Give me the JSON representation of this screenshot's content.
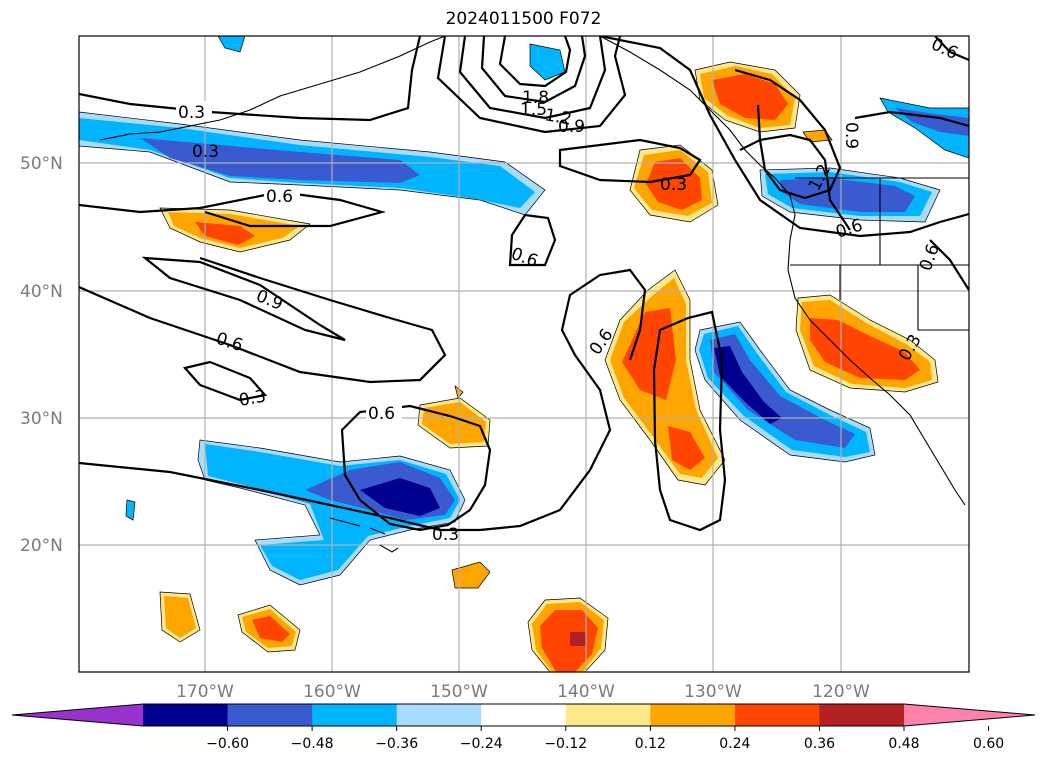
{
  "title": "2024011500 F072",
  "lat_labels": [
    "50°N",
    "40°N",
    "30°N",
    "20°N"
  ],
  "lon_labels": [
    "170°W",
    "160°W",
    "150°W",
    "140°W",
    "130°W",
    "120°W"
  ],
  "colorbar": {
    "ticks": [
      "−0.60",
      "−0.48",
      "−0.36",
      "−0.24",
      "−0.12",
      "0.12",
      "0.24",
      "0.36",
      "0.48",
      "0.60"
    ],
    "colors": [
      "#9932cc",
      "#000090",
      "#3a5bd0",
      "#00b4ff",
      "#a8dcff",
      "#ffffff",
      "#ffe88a",
      "#ffa500",
      "#ff4500",
      "#b22222",
      "#ff82ab"
    ]
  },
  "contour_labels": [
    "0.3",
    "0.3",
    "0.6",
    "0.9",
    "0.6",
    "0.3",
    "0.6",
    "0.6",
    "1.8",
    "1.5",
    "1.2",
    "0.9",
    "0.3",
    "0.6",
    "0.3",
    "1.2",
    "0.6",
    "0.9",
    "0.6",
    "0.6",
    "0.3"
  ]
}
